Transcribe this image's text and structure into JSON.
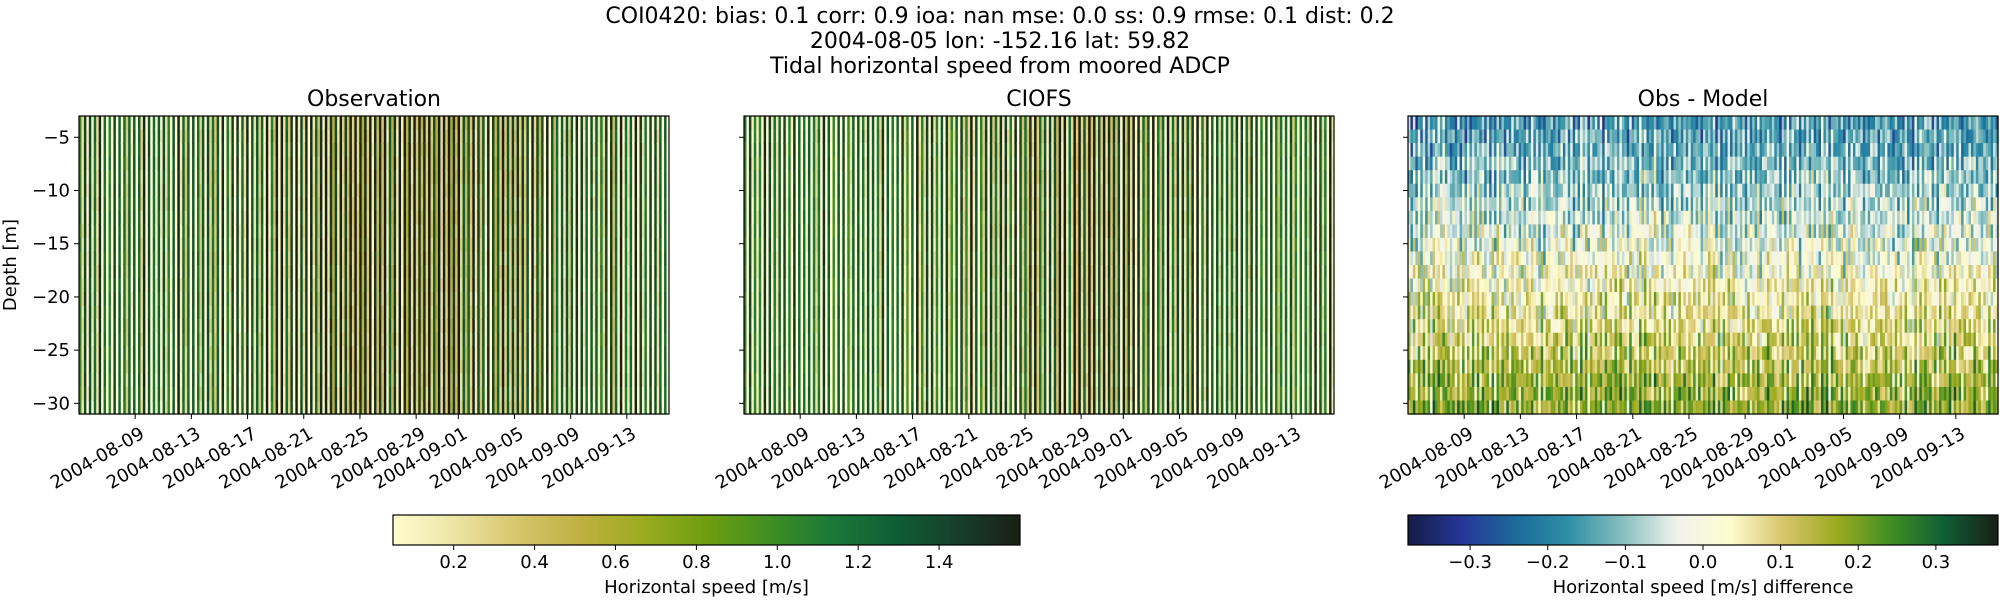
{
  "header": {
    "line1": "COI0420: bias: 0.1  corr: 0.9  ioa: nan  mse: 0.0  ss: 0.9  rmse: 0.1  dist: 0.2",
    "line2": "2004-08-05 lon: -152.16 lat: 59.82",
    "line3": "Tidal horizontal speed from moored ADCP"
  },
  "colors": {
    "speed_colormap": [
      "#fefccf",
      "#ebe4a3",
      "#d8c56b",
      "#bfb040",
      "#9bab20",
      "#6f9e10",
      "#3f8f22",
      "#1c7838",
      "#0f5e35",
      "#173f2a",
      "#1a1f16"
    ],
    "diff_colormap": [
      "#151d44",
      "#263697",
      "#1c6a9a",
      "#2e8fa6",
      "#86bfbf",
      "#f0f2ec",
      "#fefccf",
      "#d8c56b",
      "#9bab20",
      "#3f8f22",
      "#0f5e35",
      "#1a1f16"
    ]
  },
  "chart_data": [
    {
      "type": "heatmap",
      "title": "Observation",
      "ylabel": "Depth [m]",
      "xlabel": "",
      "x_range": [
        "2004-08-05",
        "2004-09-16"
      ],
      "xticks": [
        "2004-08-09",
        "2004-08-13",
        "2004-08-17",
        "2004-08-21",
        "2004-08-25",
        "2004-08-29",
        "2004-09-01",
        "2004-09-05",
        "2004-09-09",
        "2004-09-13"
      ],
      "ylim": [
        -31,
        -3
      ],
      "yticks": [
        -5,
        -10,
        -15,
        -20,
        -25,
        -30
      ],
      "colorbar": "speed",
      "value_range": [
        0.05,
        1.6
      ],
      "pattern": "vertical bands alternating 0.1–1.5 m/s at tidal frequency, darker (faster) late August to early September"
    },
    {
      "type": "heatmap",
      "title": "CIOFS",
      "ylabel": "",
      "xlabel": "",
      "x_range": [
        "2004-08-05",
        "2004-09-16"
      ],
      "xticks": [
        "2004-08-09",
        "2004-08-13",
        "2004-08-17",
        "2004-08-21",
        "2004-08-25",
        "2004-08-29",
        "2004-09-01",
        "2004-09-05",
        "2004-09-09",
        "2004-09-13"
      ],
      "ylim": [
        -31,
        -3
      ],
      "yticks": [
        -5,
        -10,
        -15,
        -20,
        -25,
        -30
      ],
      "colorbar": "speed",
      "value_range": [
        0.05,
        1.6
      ],
      "pattern": "vertical bands similar to observation, model speeds slightly lower"
    },
    {
      "type": "heatmap",
      "title": "Obs - Model",
      "ylabel": "",
      "xlabel": "",
      "x_range": [
        "2004-08-05",
        "2004-09-16"
      ],
      "xticks": [
        "2004-08-09",
        "2004-08-13",
        "2004-08-17",
        "2004-08-21",
        "2004-08-25",
        "2004-08-29",
        "2004-09-01",
        "2004-09-05",
        "2004-09-09",
        "2004-09-13"
      ],
      "ylim": [
        -31,
        -3
      ],
      "yticks": [
        -5,
        -10,
        -15,
        -20,
        -25,
        -30
      ],
      "colorbar": "diff",
      "value_range": [
        -0.38,
        0.38
      ],
      "pattern": "negative (blue) differences near surface, positive (yellow/green) differences at depth"
    }
  ],
  "colorbars": [
    {
      "name": "speed",
      "label": "Horizontal speed [m/s]",
      "range": [
        0.05,
        1.6
      ],
      "ticks": [
        0.2,
        0.4,
        0.6,
        0.8,
        1.0,
        1.2,
        1.4
      ],
      "tick_labels": [
        "0.2",
        "0.4",
        "0.6",
        "0.8",
        "1.0",
        "1.2",
        "1.4"
      ]
    },
    {
      "name": "diff",
      "label": "Horizontal speed [m/s] difference",
      "range": [
        -0.38,
        0.38
      ],
      "ticks": [
        -0.3,
        -0.2,
        -0.1,
        0.0,
        0.1,
        0.2,
        0.3
      ],
      "tick_labels": [
        "−0.3",
        "−0.2",
        "−0.1",
        "0.0",
        "0.1",
        "0.2",
        "0.3"
      ]
    }
  ]
}
